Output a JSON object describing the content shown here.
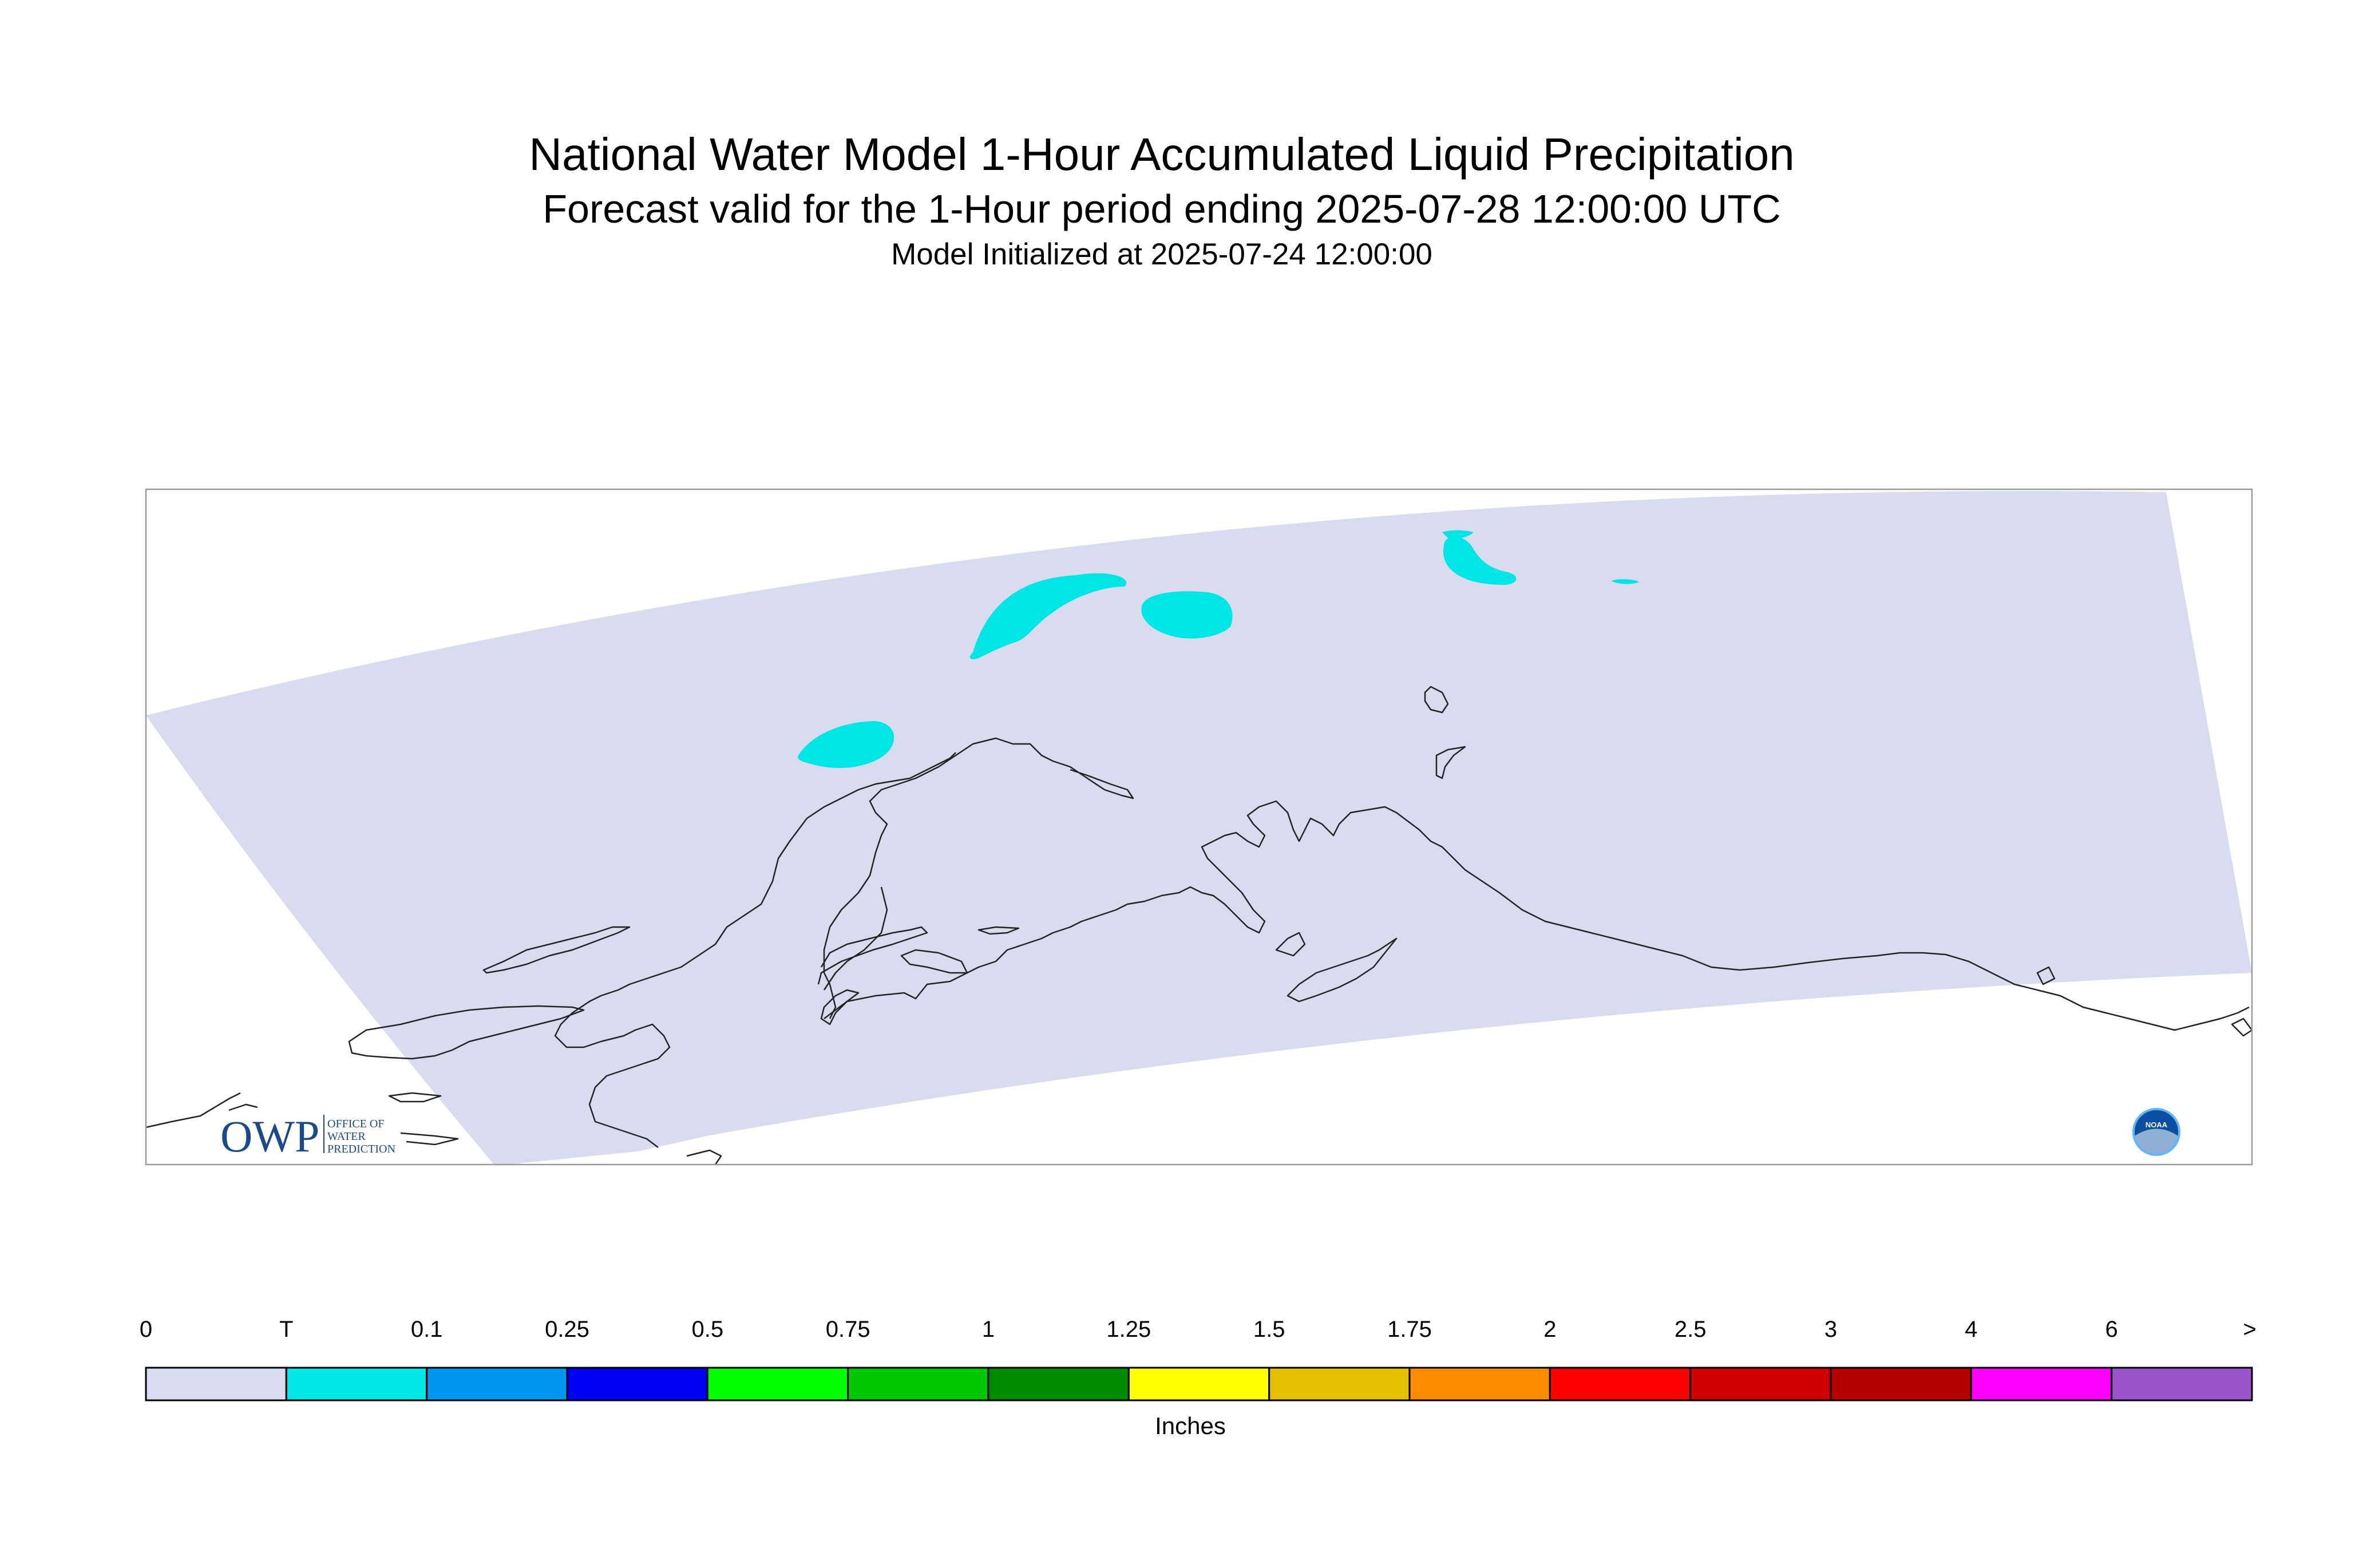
{
  "title": "National Water Model 1-Hour Accumulated Liquid Precipitation",
  "subtitle": "Forecast valid for the 1-Hour period ending 2025-07-28 12:00:00 UTC",
  "init": "Model Initialized at 2025-07-24 12:00:00",
  "units": "Inches",
  "legend": {
    "labels": [
      "0",
      "T",
      "0.1",
      "0.25",
      "0.5",
      "0.75",
      "1",
      "1.25",
      "1.5",
      "1.75",
      "2",
      "2.5",
      "3",
      "4",
      "6",
      ">"
    ],
    "colors": [
      "#d9dbef",
      "#00e5e5",
      "#0096f0",
      "#0000f5",
      "#00ff00",
      "#00c800",
      "#008c00",
      "#ffff00",
      "#e5c000",
      "#ff8c00",
      "#ff0000",
      "#d10000",
      "#b40000",
      "#ff00ff",
      "#9955c9"
    ]
  },
  "map": {
    "domain_color": "#d9dbef",
    "coast_color": "#222222"
  },
  "logos": {
    "owp_mark": "OWP",
    "owp_line1": "OFFICE OF",
    "owp_line2": "WATER",
    "owp_line3": "PREDICTION",
    "noaa_mark": "NOAA"
  }
}
